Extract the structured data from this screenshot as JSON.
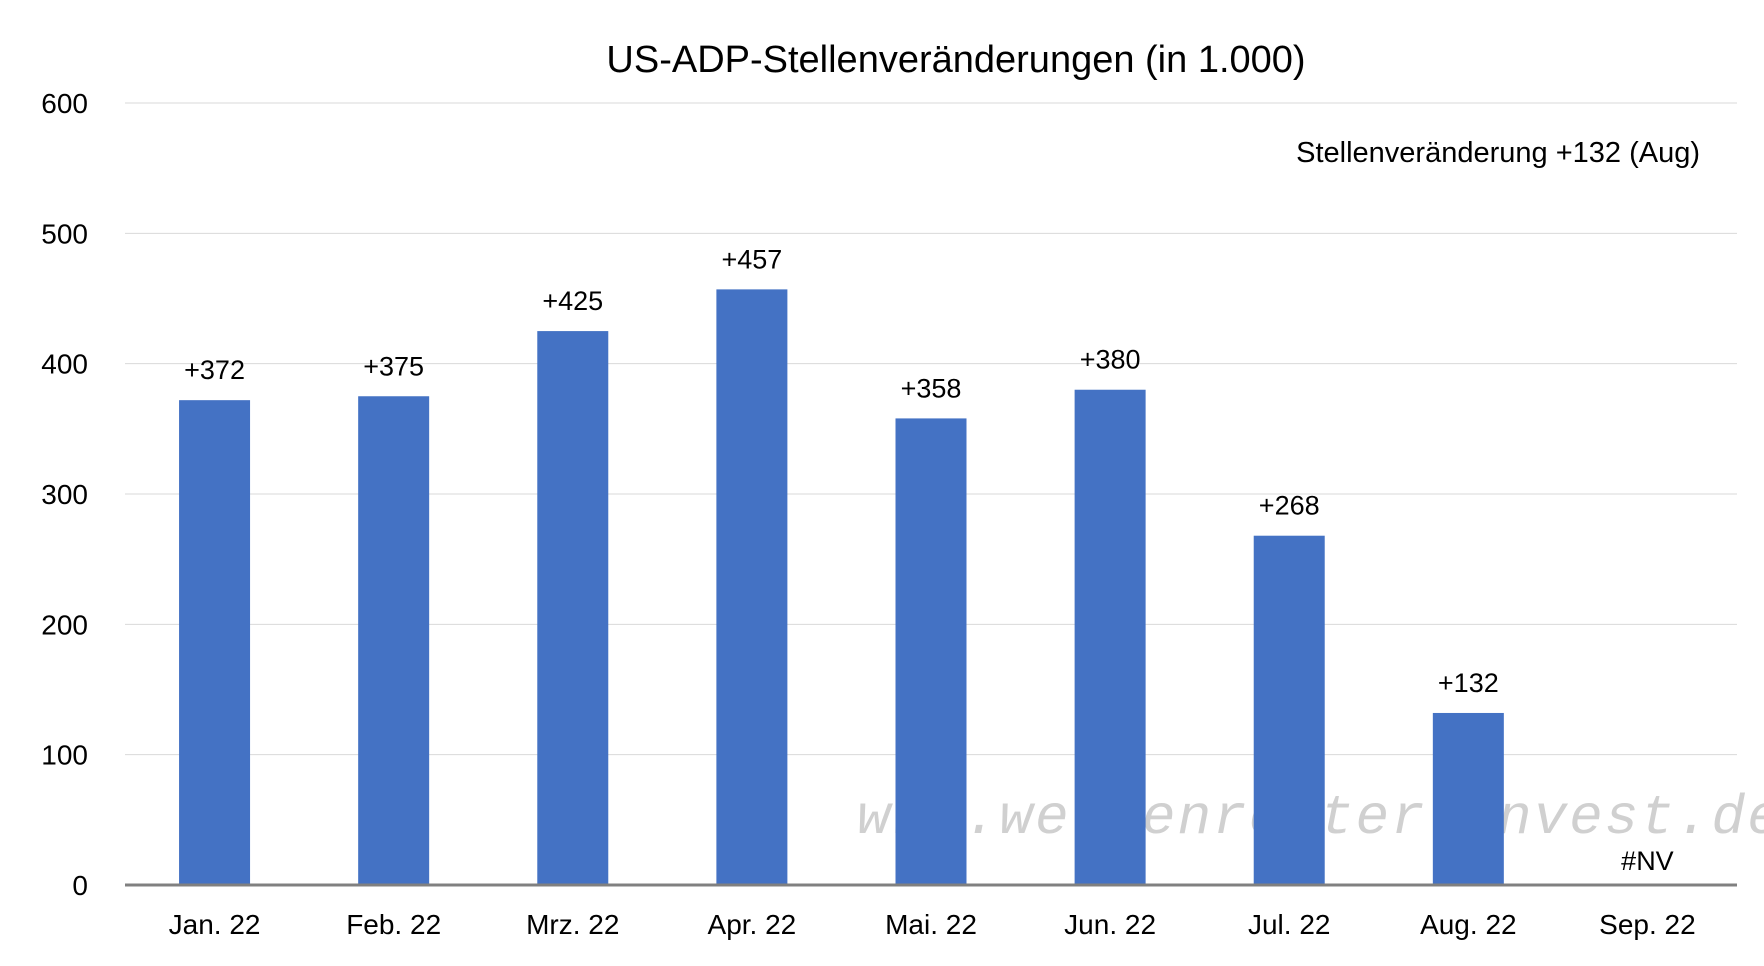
{
  "chart_data": {
    "type": "bar",
    "title": "US-ADP-Stellenveränderungen (in 1.000)",
    "annotation": "Stellenveränderung +132 (Aug)",
    "watermark": "www.wellenreiter-invest.de",
    "categories": [
      "Jan. 22",
      "Feb. 22",
      "Mrz. 22",
      "Apr. 22",
      "Mai. 22",
      "Jun. 22",
      "Jul. 22",
      "Aug. 22",
      "Sep. 22"
    ],
    "values": [
      372,
      375,
      425,
      457,
      358,
      380,
      268,
      132,
      null
    ],
    "data_labels": [
      "+372",
      "+375",
      "+425",
      "+457",
      "+358",
      "+380",
      "+268",
      "+132",
      "#NV"
    ],
    "ylim": [
      0,
      600
    ],
    "yticks": [
      0,
      100,
      200,
      300,
      400,
      500,
      600
    ],
    "ytick_labels": [
      "0",
      "100",
      "200",
      "300",
      "400",
      "500",
      "600"
    ],
    "grid": true,
    "bar_color": "#4472C4",
    "grid_color": "#D9D9D9",
    "axis_color": "#808080"
  }
}
